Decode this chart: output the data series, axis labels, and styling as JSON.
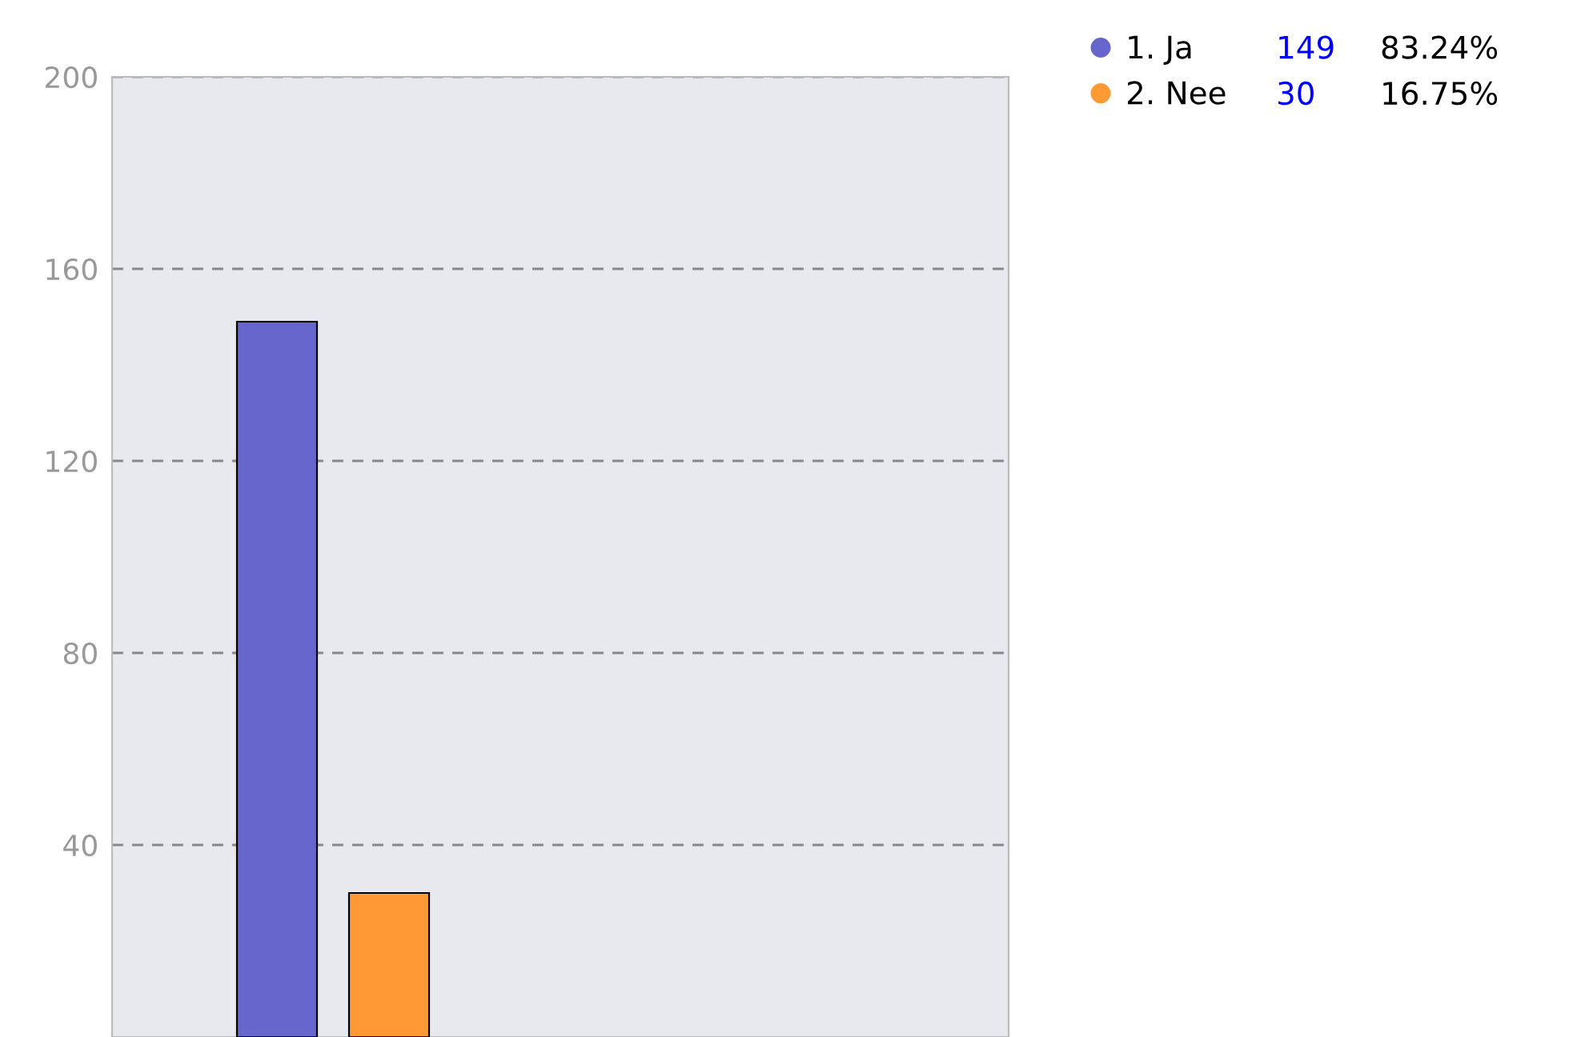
{
  "chart_data": {
    "type": "bar",
    "categories": [
      null
    ],
    "series": [
      {
        "name": "1. Ja",
        "color": "#6666cc",
        "values": [
          149
        ]
      },
      {
        "name": "2. Nee",
        "color": "#ff9933",
        "values": [
          30
        ]
      }
    ],
    "annotations": [
      "149",
      "83.24%",
      "30",
      "16.75%"
    ],
    "ylim": [
      0,
      200
    ],
    "yticks": [
      40,
      80,
      120,
      160,
      200
    ],
    "grid": "y",
    "legend": "top right",
    "marker": "circle"
  }
}
